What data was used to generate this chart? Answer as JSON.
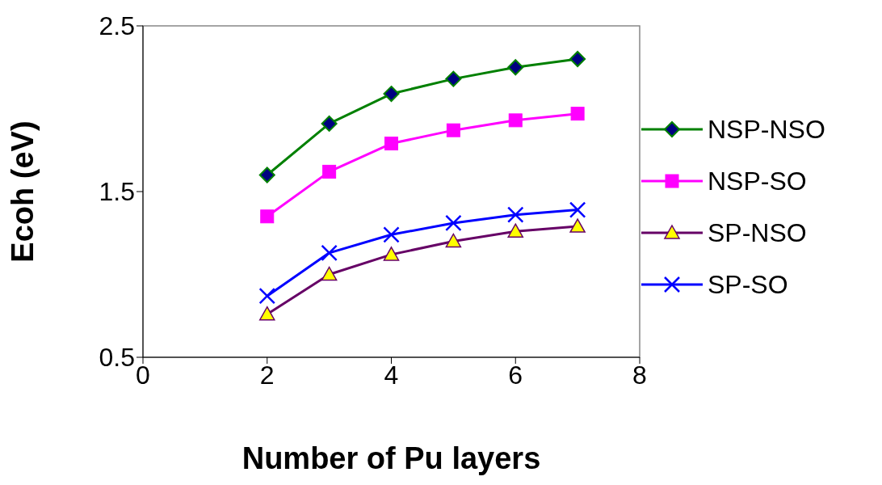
{
  "chart_data": {
    "type": "line",
    "xlabel": "Number of Pu layers",
    "ylabel": "Ecoh (eV)",
    "x": [
      2,
      3,
      4,
      5,
      6,
      7
    ],
    "xlim": [
      0,
      8
    ],
    "xticks": [
      0,
      2,
      4,
      6,
      8
    ],
    "ylim": [
      0.5,
      2.5
    ],
    "yticks": [
      0.5,
      1.5,
      2.5
    ],
    "grid": false,
    "legend": "right",
    "series": [
      {
        "name": "NSP-NSO",
        "color": "#008000",
        "marker": "diamond",
        "values": [
          1.6,
          1.91,
          2.09,
          2.18,
          2.25,
          2.3
        ]
      },
      {
        "name": "NSP-SO",
        "color": "#ff00ff",
        "marker": "square",
        "values": [
          1.35,
          1.62,
          1.79,
          1.87,
          1.93,
          1.97
        ]
      },
      {
        "name": "SP-NSO",
        "color": "#660066",
        "marker": "triangle",
        "values": [
          0.76,
          1.0,
          1.12,
          1.2,
          1.26,
          1.29
        ]
      },
      {
        "name": "SP-SO",
        "color": "#0000ff",
        "marker": "cross",
        "values": [
          0.87,
          1.13,
          1.24,
          1.31,
          1.36,
          1.39
        ]
      }
    ]
  }
}
